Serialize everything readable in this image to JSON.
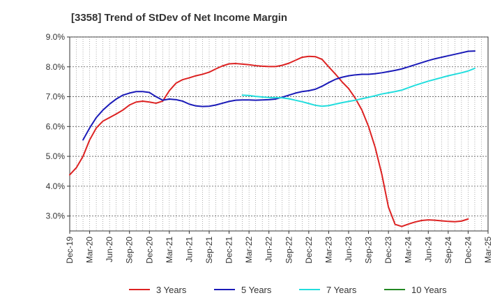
{
  "chart_data": {
    "type": "line",
    "title": "[3358]  Trend of StDev of Net Income Margin",
    "xlabel": "",
    "ylabel": "",
    "ylim": [
      2.5,
      9.0
    ],
    "y_unit": "%",
    "y_ticks": [
      "9.0%",
      "8.0%",
      "7.0%",
      "6.0%",
      "5.0%",
      "4.0%",
      "3.0%"
    ],
    "y_tick_values": [
      9.0,
      8.0,
      7.0,
      6.0,
      5.0,
      4.0,
      3.0
    ],
    "x_ticks": [
      "Dec-19",
      "Mar-20",
      "Jun-20",
      "Sep-20",
      "Dec-20",
      "Mar-21",
      "Jun-21",
      "Sep-21",
      "Dec-21",
      "Mar-22",
      "Jun-22",
      "Sep-22",
      "Dec-22",
      "Mar-23",
      "Jun-23",
      "Sep-23",
      "Dec-23",
      "Mar-24",
      "Jun-24",
      "Sep-24",
      "Dec-24",
      "Mar-25"
    ],
    "x_start": "Dec-19",
    "x_end": "Mar-25",
    "grid": true,
    "legend_position": "bottom",
    "series": [
      {
        "name": "3 Years",
        "color": "#dd2222",
        "points": [
          [
            "Dec-19",
            4.38
          ],
          [
            "Jan-20",
            4.62
          ],
          [
            "Feb-20",
            5.0
          ],
          [
            "Mar-20",
            5.55
          ],
          [
            "Apr-20",
            5.95
          ],
          [
            "May-20",
            6.18
          ],
          [
            "Jun-20",
            6.3
          ],
          [
            "Jul-20",
            6.42
          ],
          [
            "Aug-20",
            6.55
          ],
          [
            "Sep-20",
            6.72
          ],
          [
            "Oct-20",
            6.82
          ],
          [
            "Nov-20",
            6.85
          ],
          [
            "Dec-20",
            6.82
          ],
          [
            "Jan-21",
            6.78
          ],
          [
            "Feb-21",
            6.85
          ],
          [
            "Mar-21",
            7.2
          ],
          [
            "Apr-21",
            7.45
          ],
          [
            "May-21",
            7.57
          ],
          [
            "Jun-21",
            7.63
          ],
          [
            "Jul-21",
            7.7
          ],
          [
            "Aug-21",
            7.75
          ],
          [
            "Sep-21",
            7.82
          ],
          [
            "Oct-21",
            7.93
          ],
          [
            "Nov-21",
            8.03
          ],
          [
            "Dec-21",
            8.1
          ],
          [
            "Jan-22",
            8.11
          ],
          [
            "Feb-22",
            8.09
          ],
          [
            "Mar-22",
            8.07
          ],
          [
            "Apr-22",
            8.04
          ],
          [
            "May-22",
            8.02
          ],
          [
            "Jun-22",
            8.01
          ],
          [
            "Jul-22",
            8.01
          ],
          [
            "Aug-22",
            8.05
          ],
          [
            "Sep-22",
            8.12
          ],
          [
            "Oct-22",
            8.22
          ],
          [
            "Nov-22",
            8.32
          ],
          [
            "Dec-22",
            8.35
          ],
          [
            "Jan-23",
            8.34
          ],
          [
            "Feb-23",
            8.25
          ],
          [
            "Mar-23",
            8.0
          ],
          [
            "Apr-23",
            7.76
          ],
          [
            "May-23",
            7.5
          ],
          [
            "Jun-23",
            7.27
          ],
          [
            "Jul-23",
            6.95
          ],
          [
            "Aug-23",
            6.55
          ],
          [
            "Sep-23",
            6.0
          ],
          [
            "Oct-23",
            5.3
          ],
          [
            "Nov-23",
            4.4
          ],
          [
            "Dec-23",
            3.3
          ],
          [
            "Jan-24",
            2.72
          ],
          [
            "Feb-24",
            2.65
          ],
          [
            "Mar-24",
            2.73
          ],
          [
            "Apr-24",
            2.8
          ],
          [
            "May-24",
            2.85
          ],
          [
            "Jun-24",
            2.87
          ],
          [
            "Jul-24",
            2.86
          ],
          [
            "Aug-24",
            2.84
          ],
          [
            "Sep-24",
            2.82
          ],
          [
            "Oct-24",
            2.81
          ],
          [
            "Nov-24",
            2.83
          ],
          [
            "Dec-24",
            2.9
          ]
        ]
      },
      {
        "name": "5 Years",
        "color": "#1a1ab8",
        "points": [
          [
            "Feb-20",
            5.55
          ],
          [
            "Mar-20",
            5.95
          ],
          [
            "Apr-20",
            6.3
          ],
          [
            "May-20",
            6.55
          ],
          [
            "Jun-20",
            6.75
          ],
          [
            "Jul-20",
            6.92
          ],
          [
            "Aug-20",
            7.05
          ],
          [
            "Sep-20",
            7.12
          ],
          [
            "Oct-20",
            7.17
          ],
          [
            "Nov-20",
            7.17
          ],
          [
            "Dec-20",
            7.14
          ],
          [
            "Jan-21",
            7.0
          ],
          [
            "Feb-21",
            6.88
          ],
          [
            "Mar-21",
            6.92
          ],
          [
            "Apr-21",
            6.9
          ],
          [
            "May-21",
            6.85
          ],
          [
            "Jun-21",
            6.75
          ],
          [
            "Jul-21",
            6.69
          ],
          [
            "Aug-21",
            6.67
          ],
          [
            "Sep-21",
            6.68
          ],
          [
            "Oct-21",
            6.72
          ],
          [
            "Nov-21",
            6.78
          ],
          [
            "Dec-21",
            6.84
          ],
          [
            "Jan-22",
            6.88
          ],
          [
            "Feb-22",
            6.89
          ],
          [
            "Mar-22",
            6.89
          ],
          [
            "Apr-22",
            6.88
          ],
          [
            "May-22",
            6.89
          ],
          [
            "Jun-22",
            6.9
          ],
          [
            "Jul-22",
            6.92
          ],
          [
            "Aug-22",
            6.98
          ],
          [
            "Sep-22",
            7.05
          ],
          [
            "Oct-22",
            7.12
          ],
          [
            "Nov-22",
            7.17
          ],
          [
            "Dec-22",
            7.2
          ],
          [
            "Jan-23",
            7.25
          ],
          [
            "Feb-23",
            7.35
          ],
          [
            "Mar-23",
            7.47
          ],
          [
            "Apr-23",
            7.58
          ],
          [
            "May-23",
            7.65
          ],
          [
            "Jun-23",
            7.7
          ],
          [
            "Jul-23",
            7.73
          ],
          [
            "Aug-23",
            7.75
          ],
          [
            "Sep-23",
            7.75
          ],
          [
            "Oct-23",
            7.77
          ],
          [
            "Nov-23",
            7.8
          ],
          [
            "Dec-23",
            7.84
          ],
          [
            "Jan-24",
            7.88
          ],
          [
            "Feb-24",
            7.93
          ],
          [
            "Mar-24",
            8.0
          ],
          [
            "Apr-24",
            8.07
          ],
          [
            "May-24",
            8.14
          ],
          [
            "Jun-24",
            8.21
          ],
          [
            "Jul-24",
            8.27
          ],
          [
            "Aug-24",
            8.32
          ],
          [
            "Sep-24",
            8.37
          ],
          [
            "Oct-24",
            8.42
          ],
          [
            "Nov-24",
            8.47
          ],
          [
            "Dec-24",
            8.52
          ],
          [
            "Jan-25",
            8.53
          ]
        ]
      },
      {
        "name": "7 Years",
        "color": "#22dddd",
        "points": [
          [
            "Feb-22",
            7.05
          ],
          [
            "Mar-22",
            7.04
          ],
          [
            "Apr-22",
            7.01
          ],
          [
            "May-22",
            6.99
          ],
          [
            "Jun-22",
            6.97
          ],
          [
            "Jul-22",
            6.97
          ],
          [
            "Aug-22",
            6.96
          ],
          [
            "Sep-22",
            6.93
          ],
          [
            "Oct-22",
            6.88
          ],
          [
            "Nov-22",
            6.83
          ],
          [
            "Dec-22",
            6.77
          ],
          [
            "Jan-23",
            6.71
          ],
          [
            "Feb-23",
            6.68
          ],
          [
            "Mar-23",
            6.7
          ],
          [
            "Apr-23",
            6.75
          ],
          [
            "May-23",
            6.8
          ],
          [
            "Jun-23",
            6.84
          ],
          [
            "Jul-23",
            6.88
          ],
          [
            "Aug-23",
            6.93
          ],
          [
            "Sep-23",
            6.98
          ],
          [
            "Oct-23",
            7.03
          ],
          [
            "Nov-23",
            7.09
          ],
          [
            "Dec-23",
            7.13
          ],
          [
            "Jan-24",
            7.17
          ],
          [
            "Feb-24",
            7.22
          ],
          [
            "Mar-24",
            7.3
          ],
          [
            "Apr-24",
            7.38
          ],
          [
            "May-24",
            7.45
          ],
          [
            "Jun-24",
            7.52
          ],
          [
            "Jul-24",
            7.58
          ],
          [
            "Aug-24",
            7.64
          ],
          [
            "Sep-24",
            7.7
          ],
          [
            "Oct-24",
            7.75
          ],
          [
            "Nov-24",
            7.8
          ],
          [
            "Dec-24",
            7.86
          ],
          [
            "Jan-25",
            7.95
          ]
        ]
      },
      {
        "name": "10 Years",
        "color": "#228822",
        "points": []
      }
    ]
  }
}
